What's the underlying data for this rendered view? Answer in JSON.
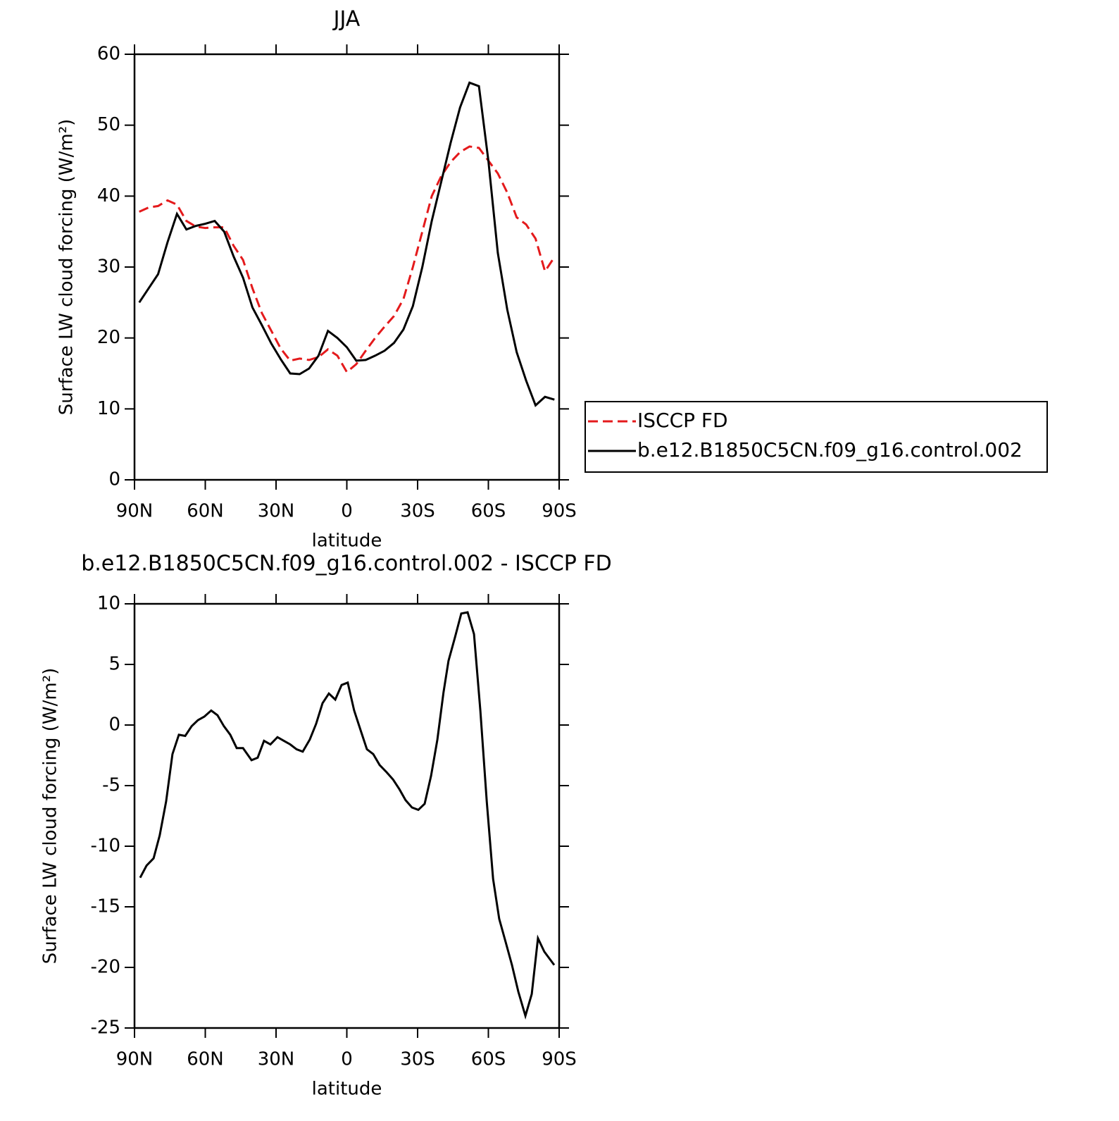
{
  "chart_data": [
    {
      "type": "line",
      "title": "JJA",
      "xlabel": "latitude",
      "ylabel": "Surface LW cloud forcing (W/m²)",
      "xlim": [
        90,
        -90
      ],
      "ylim": [
        0,
        60
      ],
      "xticks": [
        {
          "value": 90,
          "label": "90N"
        },
        {
          "value": 60,
          "label": "60N"
        },
        {
          "value": 30,
          "label": "30N"
        },
        0,
        {
          "value": -30,
          "label": "30S"
        },
        {
          "value": -60,
          "label": "60S"
        },
        {
          "value": -90,
          "label": "90S"
        }
      ],
      "yticks": [
        0,
        10,
        20,
        30,
        40,
        50,
        60
      ],
      "legend": "right",
      "x": [
        88,
        84,
        80,
        76,
        72,
        68,
        64,
        60,
        56,
        52,
        48,
        44,
        40,
        36,
        32,
        28,
        24,
        20,
        16,
        12,
        8,
        4,
        0,
        -4,
        -8,
        -12,
        -16,
        -20,
        -24,
        -28,
        -32,
        -36,
        -40,
        -44,
        -48,
        -52,
        -56,
        -60,
        -64,
        -68,
        -72,
        -76,
        -80,
        -84,
        -88
      ],
      "series": [
        {
          "name": "ISCCP FD",
          "color": "#e41a1c",
          "linestyle": "dashed",
          "values": [
            37.8,
            38.4,
            38.6,
            39.4,
            38.8,
            36.5,
            35.7,
            35.5,
            35.6,
            35.6,
            33,
            31,
            27,
            23.5,
            21,
            18.5,
            16.8,
            17.1,
            16.9,
            17.3,
            18.4,
            17.5,
            15.2,
            16.3,
            18.2,
            20,
            21.6,
            23.1,
            25.5,
            30,
            35,
            40,
            42.8,
            44.8,
            46.2,
            47,
            46.8,
            45,
            43.2,
            40.5,
            37,
            36,
            34,
            29.4,
            31.4
          ]
        },
        {
          "name": "b.e12.B1850C5CN.f09_g16.control.002",
          "color": "#000000",
          "linestyle": "solid",
          "values": [
            25,
            27,
            29,
            33.5,
            37.5,
            35.3,
            35.8,
            36.1,
            36.5,
            35,
            31.5,
            28.5,
            24.3,
            21.8,
            19.2,
            17,
            15,
            14.9,
            15.7,
            17.5,
            21,
            20,
            18.7,
            16.8,
            16.9,
            17.5,
            18.2,
            19.3,
            21.2,
            24.5,
            30,
            36.5,
            42,
            47.5,
            52.5,
            56,
            55.5,
            45,
            32,
            24,
            18,
            14,
            10.5,
            11.7,
            11.3
          ]
        }
      ]
    },
    {
      "type": "line",
      "title": "b.e12.B1850C5CN.f09_g16.control.002 - ISCCP FD",
      "xlabel": "latitude",
      "ylabel": "Surface LW cloud forcing (W/m²)",
      "xlim": [
        90,
        -90
      ],
      "ylim": [
        -25,
        10
      ],
      "xticks": [
        {
          "value": 90,
          "label": "90N"
        },
        {
          "value": 60,
          "label": "60N"
        },
        {
          "value": 30,
          "label": "30N"
        },
        0,
        {
          "value": -30,
          "label": "30S"
        },
        {
          "value": -60,
          "label": "60S"
        },
        {
          "value": -90,
          "label": "90S"
        }
      ],
      "yticks": [
        -25,
        -20,
        -15,
        -10,
        -5,
        0,
        5,
        10
      ],
      "x": [
        87.6,
        84.9,
        81.9,
        79.3,
        76.6,
        73.9,
        71.2,
        68.5,
        65.8,
        63.1,
        60.4,
        57.5,
        54.8,
        52.1,
        49.4,
        46.7,
        44.0,
        40.4,
        37.8,
        35.1,
        32.4,
        29.4,
        26.7,
        24.0,
        21.3,
        18.7,
        15.7,
        13.0,
        10.3,
        7.6,
        4.9,
        2.2,
        -0.4,
        -3.1,
        -5.8,
        -8.5,
        -11.2,
        -13.9,
        -16.9,
        -19.6,
        -22.3,
        -24.9,
        -27.6,
        -30.3,
        -33.0,
        -35.7,
        -38.4,
        -41.0,
        -43.1,
        -45.8,
        -48.5,
        -51.2,
        -53.9,
        -56.6,
        -59.3,
        -62.0,
        -64.6,
        -67.3,
        -70.0,
        -72.7,
        -75.7,
        -78.4,
        -81.0,
        -83.7,
        -87.9
      ],
      "series": [
        {
          "color": "#000000",
          "linestyle": "solid",
          "values": [
            -12.6,
            -11.6,
            -11.0,
            -9.1,
            -6.3,
            -2.4,
            -0.8,
            -0.9,
            -0.1,
            0.4,
            0.7,
            1.2,
            0.8,
            -0.1,
            -0.8,
            -1.9,
            -1.9,
            -2.9,
            -2.7,
            -1.3,
            -1.6,
            -1.0,
            -1.3,
            -1.6,
            -2.0,
            -2.2,
            -1.2,
            0.1,
            1.8,
            2.6,
            2.1,
            3.3,
            3.5,
            1.2,
            -0.4,
            -2.0,
            -2.4,
            -3.3,
            -3.9,
            -4.5,
            -5.3,
            -6.2,
            -6.8,
            -7.0,
            -6.5,
            -4.2,
            -1.2,
            2.7,
            5.3,
            7.2,
            9.2,
            9.3,
            7.5,
            1.2,
            -6.3,
            -12.7,
            -16.0,
            -17.9,
            -19.8,
            -22.0,
            -24.0,
            -22.2,
            -17.6,
            -18.7,
            -19.8
          ]
        }
      ]
    }
  ]
}
